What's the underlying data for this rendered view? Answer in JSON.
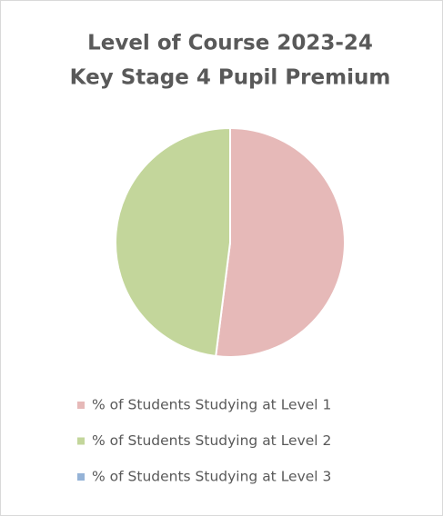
{
  "chart_data": {
    "type": "pie",
    "title": [
      "Level of Course 2023-24",
      "Key Stage 4 Pupil Premium"
    ],
    "categories": [
      "% of Students Studying at Level 1",
      "% of Students Studying at Level 2",
      "% of Students Studying at Level 3"
    ],
    "values": [
      52,
      48,
      0
    ],
    "colors": [
      "#e6b9b8",
      "#c3d69b",
      "#95b3d7"
    ],
    "legend": "bottom"
  }
}
